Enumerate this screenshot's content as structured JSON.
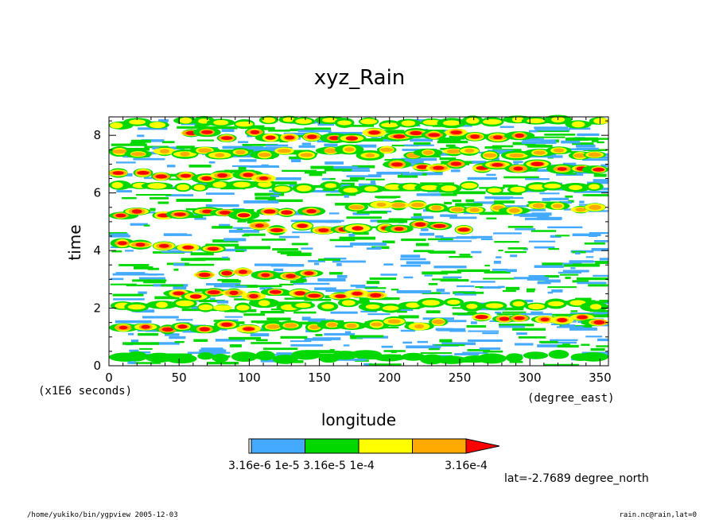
{
  "chart_data": {
    "type": "heatmap",
    "title": "xyz_Rain",
    "xlabel": "longitude",
    "ylabel": "time",
    "x_units": "(degree_east)",
    "y_units": "(x1E6 seconds)",
    "xlim": [
      0,
      356
    ],
    "ylim": [
      0,
      8.64
    ],
    "x_ticks": [
      "0",
      "50",
      "100",
      "150",
      "200",
      "250",
      "300",
      "350"
    ],
    "y_ticks": [
      "0",
      "2",
      "4",
      "6",
      "8"
    ],
    "levels": [
      3.16e-06,
      1e-05,
      3.16e-05,
      0.0001,
      0.000316
    ],
    "level_labels": [
      "3.16e-6",
      "1e-5",
      "3.16e-5",
      "1e-4",
      "3.16e-4"
    ],
    "colorbar_text": "3.16e-6 1e-5 3.16e-5 1e-4",
    "colorbar_end_label": "3.16e-4",
    "colors": [
      "#ffffff",
      "#44aaff",
      "#00d800",
      "#ffff00",
      "#ffaa00",
      "#ff0000"
    ],
    "bands": [
      {
        "x": [
          0,
          356
        ],
        "y": 0.3,
        "v": 2
      },
      {
        "x": [
          0,
          356
        ],
        "y": 0.55,
        "v": 1
      },
      {
        "x": [
          0,
          110
        ],
        "y": 1.35,
        "v": 5
      },
      {
        "x": [
          110,
          240
        ],
        "y": 1.45,
        "v": 4
      },
      {
        "x": [
          260,
          356
        ],
        "y": 1.6,
        "v": 5
      },
      {
        "x": [
          0,
          356
        ],
        "y": 2.1,
        "v": 3
      },
      {
        "x": [
          40,
          200
        ],
        "y": 2.45,
        "v": 5
      },
      {
        "x": [
          60,
          150
        ],
        "y": 3.2,
        "v": 5
      },
      {
        "x": [
          0,
          80
        ],
        "y": 4.15,
        "v": 5
      },
      {
        "x": [
          100,
          260
        ],
        "y": 4.8,
        "v": 5
      },
      {
        "x": [
          0,
          150
        ],
        "y": 5.3,
        "v": 5
      },
      {
        "x": [
          170,
          356
        ],
        "y": 5.5,
        "v": 4
      },
      {
        "x": [
          0,
          356
        ],
        "y": 6.2,
        "v": 3
      },
      {
        "x": [
          0,
          120
        ],
        "y": 6.6,
        "v": 5
      },
      {
        "x": [
          200,
          356
        ],
        "y": 6.9,
        "v": 5
      },
      {
        "x": [
          0,
          356
        ],
        "y": 7.4,
        "v": 4
      },
      {
        "x": [
          50,
          300
        ],
        "y": 8.0,
        "v": 5
      },
      {
        "x": [
          0,
          356
        ],
        "y": 8.45,
        "v": 3
      }
    ]
  },
  "annotation_lat": "lat=-2.7689 degree_north",
  "footer_left": "/home/yukiko/bin/ygpview  2005-12-03",
  "footer_right": "rain.nc@rain,lat=0"
}
